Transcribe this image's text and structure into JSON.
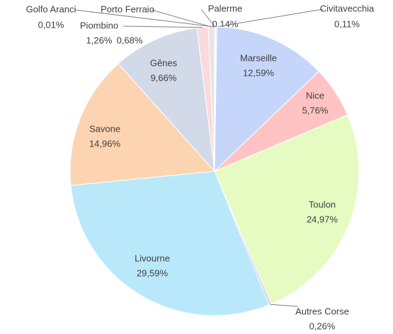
{
  "chart_data": {
    "type": "pie",
    "categories": [
      "Palerme",
      "Civitavecchia",
      "Marseille",
      "Nice",
      "Toulon",
      "Autres Corse",
      "Livourne",
      "Savone",
      "Gênes",
      "Piombino",
      "Porto Ferraio",
      "Golfo Aranci"
    ],
    "values": [
      0.14,
      0.11,
      12.59,
      5.76,
      24.97,
      0.26,
      29.59,
      14.96,
      9.66,
      1.26,
      0.68,
      0.01
    ],
    "value_labels": [
      "0,14%",
      "0,11%",
      "12,59%",
      "5,76%",
      "24,97%",
      "0,26%",
      "29,59%",
      "14,96%",
      "9,66%",
      "1,26%",
      "0,68%",
      "0,01%"
    ],
    "colors": [
      "#e3efd3",
      "#dcdcdc",
      "#c6d6fb",
      "#ffc3c3",
      "#e5fbc2",
      "#d6c8f0",
      "#bae8fb",
      "#fdd4b2",
      "#d2d9e8",
      "#fbdadc",
      "#e6e6e6",
      "#f0f0f0"
    ]
  }
}
